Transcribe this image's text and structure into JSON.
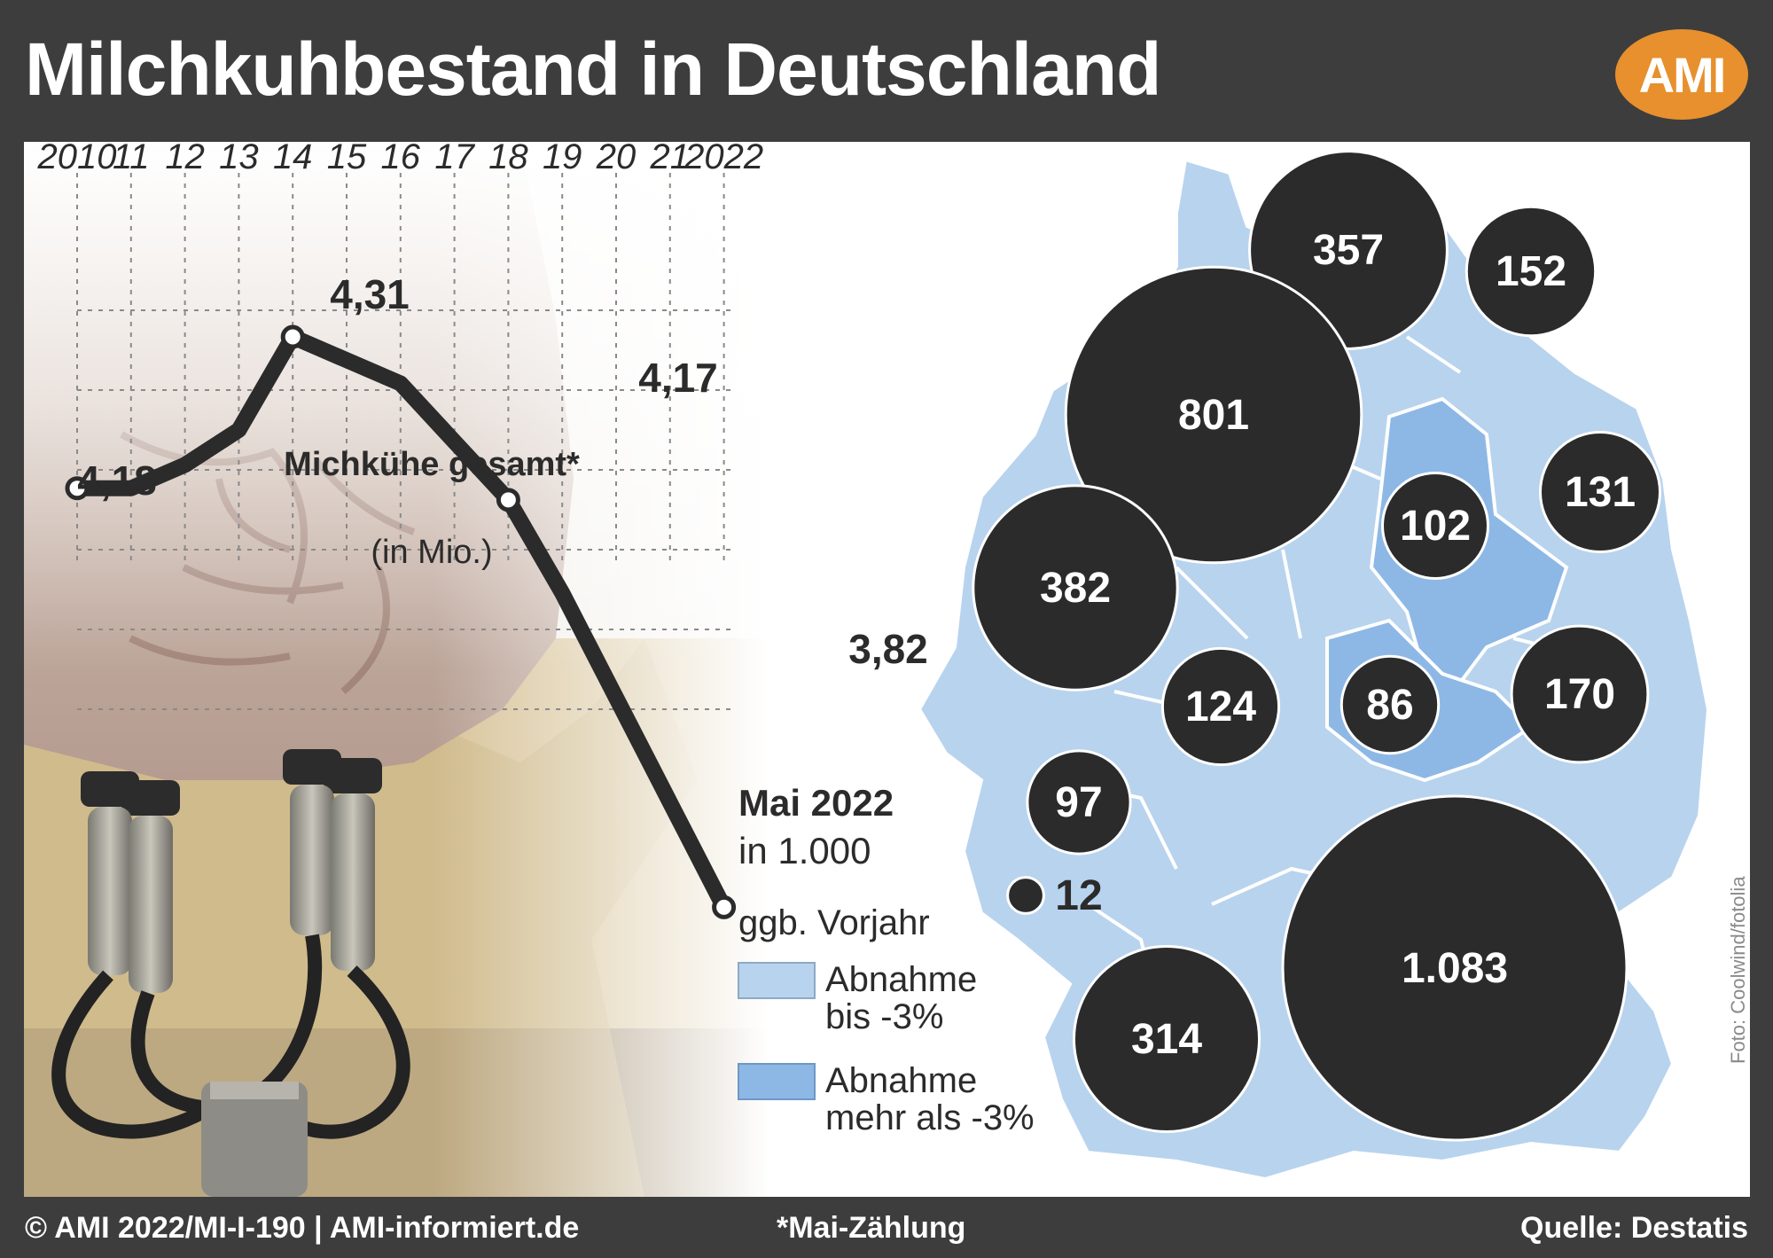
{
  "header": {
    "title": "Milchkuhbestand in Deutschland",
    "logo_text": "AMI",
    "logo_color": "#e7902d"
  },
  "colors": {
    "background": "#3d3d3d",
    "line": "#2b2b2b",
    "bubble": "#2b2b2b",
    "state_light": "#b8d3ee",
    "state_dark": "#8db8e6"
  },
  "chart_data": [
    {
      "type": "line",
      "x_tick_labels": [
        "2010",
        "11",
        "12",
        "13",
        "14",
        "15",
        "16",
        "17",
        "18",
        "19",
        "20",
        "21",
        "2022"
      ],
      "x": [
        2010,
        2011,
        2012,
        2013,
        2014,
        2015,
        2016,
        2017,
        2018,
        2019,
        2020,
        2021,
        2022
      ],
      "series": [
        {
          "name": "Michkühe gesamt*",
          "unit": "(in Mio.)",
          "values": [
            4.18,
            4.18,
            4.2,
            4.23,
            4.31,
            4.29,
            4.27,
            4.22,
            4.17,
            4.09,
            4.0,
            3.91,
            3.82
          ]
        }
      ],
      "data_labels": [
        {
          "x": 2010,
          "text": "4,18"
        },
        {
          "x": 2014,
          "text": "4,31"
        },
        {
          "x": 2018,
          "text": "4,17"
        },
        {
          "x": 2022,
          "text": "3,82"
        }
      ],
      "ylim": [
        3.6,
        4.5
      ],
      "grid": true
    },
    {
      "type": "bubble-map",
      "legend_title": "Mai 2022",
      "legend_subtitle": "in 1.000",
      "legend_heading": "ggb. Vorjahr",
      "legend_items": [
        {
          "label_line1": "Abnahme",
          "label_line2": "bis -3%",
          "color": "#b8d3ee"
        },
        {
          "label_line1": "Abnahme",
          "label_line2": "mehr als -3%",
          "color": "#8db8e6"
        }
      ],
      "bubbles": [
        {
          "label": "357",
          "value": 357
        },
        {
          "label": "152",
          "value": 152
        },
        {
          "label": "801",
          "value": 801
        },
        {
          "label": "131",
          "value": 131
        },
        {
          "label": "102",
          "value": 102
        },
        {
          "label": "382",
          "value": 382
        },
        {
          "label": "124",
          "value": 124
        },
        {
          "label": "86",
          "value": 86
        },
        {
          "label": "170",
          "value": 170
        },
        {
          "label": "97",
          "value": 97
        },
        {
          "label": "12",
          "value": 12
        },
        {
          "label": "314",
          "value": 314
        },
        {
          "label": "1.083",
          "value": 1083
        }
      ]
    }
  ],
  "footer": {
    "copyright": "© AMI 2022/MI-I-190 | AMI-informiert.de",
    "note": "*Mai-Zählung",
    "source": "Quelle: Destatis"
  },
  "photo_credit": "Foto: Coolwind/fotolia"
}
